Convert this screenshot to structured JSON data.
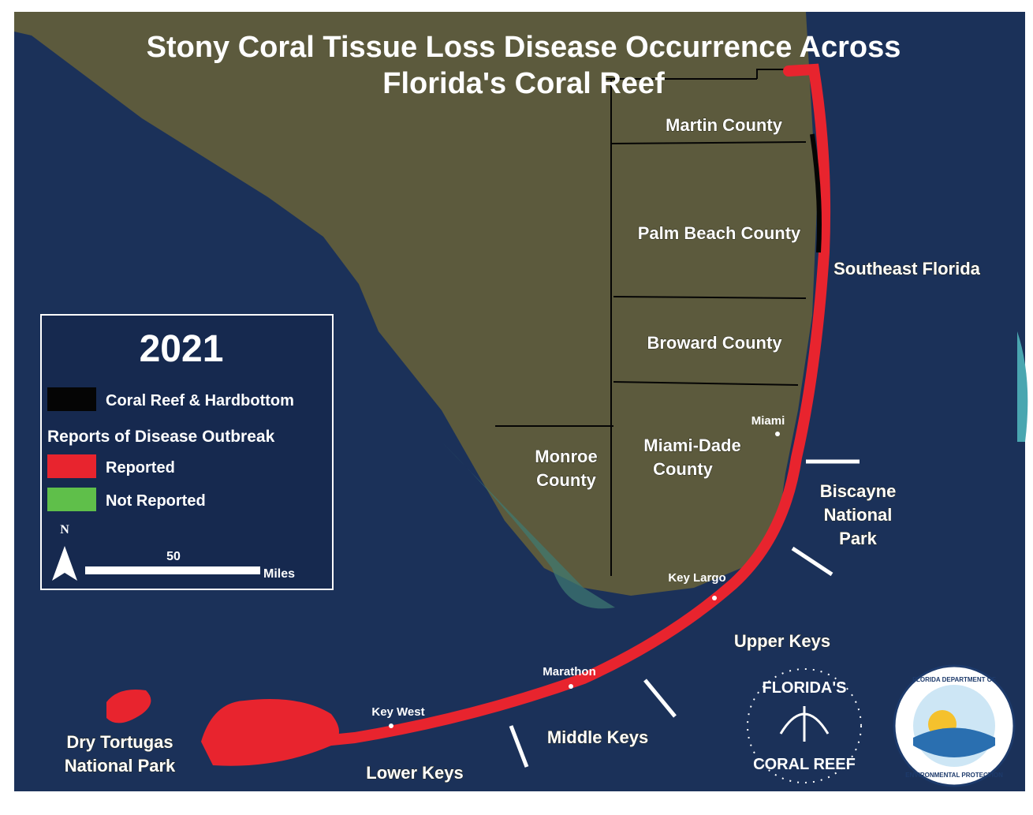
{
  "title": {
    "lines": [
      "Stony Coral Tissue Loss Disease Occurrence Across",
      "Florida's Coral Reef"
    ]
  },
  "legend": {
    "year": "2021",
    "items": [
      {
        "label": "Coral Reef & Hardbottom",
        "color": "#050505"
      }
    ],
    "section": "Reports of Disease Outbreak",
    "outbreak_items": [
      {
        "label": "Reported",
        "color": "#e8242e"
      },
      {
        "label": "Not Reported",
        "color": "#5fbf4a"
      }
    ],
    "north": "N",
    "scale_value": "50",
    "scale_unit": "Miles"
  },
  "counties": [
    {
      "lines": [
        "Martin County"
      ]
    },
    {
      "lines": [
        "Palm Beach County"
      ]
    },
    {
      "lines": [
        "Broward County"
      ]
    },
    {
      "lines": [
        "Miami-Dade",
        "County"
      ]
    },
    {
      "lines": [
        "Monroe",
        "County"
      ]
    }
  ],
  "regions": [
    {
      "lines": [
        "Southeast Florida"
      ]
    },
    {
      "lines": [
        "Biscayne",
        "National",
        "Park"
      ]
    },
    {
      "lines": [
        "Upper Keys"
      ]
    },
    {
      "lines": [
        "Middle Keys"
      ]
    },
    {
      "lines": [
        "Lower Keys"
      ]
    },
    {
      "lines": [
        "Dry Tortugas",
        "National Park"
      ]
    }
  ],
  "cities": [
    "Miami",
    "Key Largo",
    "Marathon",
    "Key West"
  ],
  "logos": {
    "reef": [
      "FLORIDA'S",
      "CORAL REEF"
    ],
    "dep": [
      "FLORIDA DEPARTMENT OF",
      "ENVIRONMENTAL PROTECTION"
    ]
  }
}
